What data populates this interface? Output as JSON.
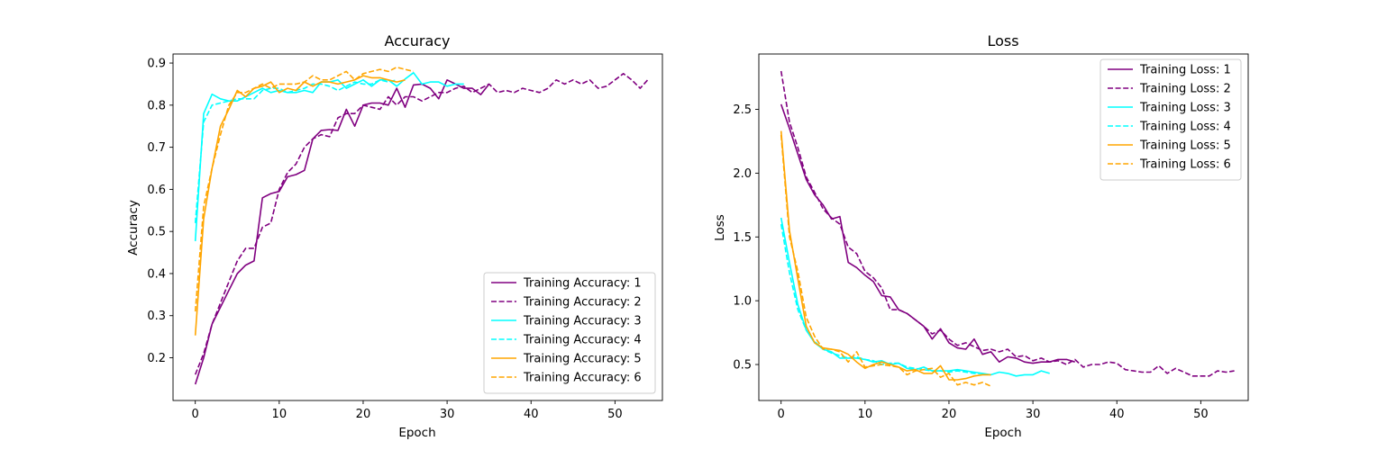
{
  "chart_data": [
    {
      "type": "line",
      "title": "Accuracy",
      "xlabel": "Epoch",
      "ylabel": "Accuracy",
      "xlim": [
        -2.65,
        55.65
      ],
      "ylim": [
        0.0985,
        0.9215
      ],
      "xticks": [
        "0",
        "10",
        "20",
        "30",
        "40",
        "50"
      ],
      "yticks": [
        "0.2",
        "0.3",
        "0.4",
        "0.5",
        "0.6",
        "0.7",
        "0.8",
        "0.9"
      ],
      "grid": false,
      "legend_position": "lower right",
      "series": [
        {
          "name": "Training Accuracy: 1",
          "color": "#800080",
          "dash": "solid",
          "values": [
            0.137,
            0.2,
            0.28,
            0.32,
            0.36,
            0.4,
            0.42,
            0.43,
            0.58,
            0.59,
            0.595,
            0.63,
            0.635,
            0.645,
            0.72,
            0.74,
            0.742,
            0.74,
            0.79,
            0.75,
            0.8,
            0.805,
            0.805,
            0.8,
            0.84,
            0.795,
            0.848,
            0.85,
            0.84,
            0.815,
            0.86,
            0.85,
            0.84,
            0.84,
            0.825,
            0.85
          ]
        },
        {
          "name": "Training Accuracy: 2",
          "color": "#800080",
          "dash": "dashed",
          "values": [
            0.16,
            0.21,
            0.28,
            0.33,
            0.38,
            0.43,
            0.46,
            0.46,
            0.51,
            0.52,
            0.6,
            0.64,
            0.66,
            0.7,
            0.72,
            0.73,
            0.725,
            0.77,
            0.78,
            0.78,
            0.8,
            0.795,
            0.79,
            0.82,
            0.8,
            0.82,
            0.82,
            0.81,
            0.82,
            0.83,
            0.83,
            0.84,
            0.845,
            0.83,
            0.84,
            0.85,
            0.83,
            0.835,
            0.83,
            0.84,
            0.835,
            0.83,
            0.84,
            0.86,
            0.85,
            0.86,
            0.85,
            0.86,
            0.84,
            0.845,
            0.86,
            0.875,
            0.86,
            0.84,
            0.862
          ]
        },
        {
          "name": "Training Accuracy: 3",
          "color": "#00FFFF",
          "dash": "solid",
          "values": [
            0.477,
            0.78,
            0.826,
            0.815,
            0.81,
            0.81,
            0.82,
            0.83,
            0.84,
            0.83,
            0.835,
            0.83,
            0.83,
            0.835,
            0.83,
            0.855,
            0.855,
            0.86,
            0.84,
            0.85,
            0.86,
            0.845,
            0.86,
            0.86,
            0.845,
            0.862,
            0.877,
            0.85,
            0.855,
            0.855,
            0.845,
            0.85,
            0.85
          ]
        },
        {
          "name": "Training Accuracy: 4",
          "color": "#00FFFF",
          "dash": "dashed",
          "values": [
            0.52,
            0.76,
            0.8,
            0.805,
            0.81,
            0.815,
            0.815,
            0.815,
            0.835,
            0.84,
            0.84,
            0.83,
            0.835,
            0.84,
            0.85,
            0.85,
            0.845,
            0.835,
            0.845,
            0.855,
            0.85,
            0.85,
            0.86,
            0.855,
            0.86
          ]
        },
        {
          "name": "Training Accuracy: 5",
          "color": "#FFA500",
          "dash": "solid",
          "values": [
            0.253,
            0.53,
            0.65,
            0.75,
            0.79,
            0.835,
            0.82,
            0.84,
            0.845,
            0.855,
            0.83,
            0.84,
            0.835,
            0.855,
            0.845,
            0.855,
            0.855,
            0.85,
            0.855,
            0.86,
            0.87,
            0.865,
            0.865,
            0.86,
            0.855,
            0.86
          ]
        },
        {
          "name": "Training Accuracy: 6",
          "color": "#FFA500",
          "dash": "dashed",
          "values": [
            0.31,
            0.56,
            0.65,
            0.73,
            0.8,
            0.83,
            0.83,
            0.84,
            0.85,
            0.84,
            0.85,
            0.85,
            0.85,
            0.855,
            0.87,
            0.86,
            0.86,
            0.87,
            0.88,
            0.86,
            0.875,
            0.88,
            0.885,
            0.88,
            0.89,
            0.885,
            0.88
          ]
        }
      ]
    },
    {
      "type": "line",
      "title": "Loss",
      "xlabel": "Epoch",
      "ylabel": "Loss",
      "xlim": [
        -2.65,
        55.65
      ],
      "ylim": [
        0.218,
        2.934
      ],
      "xticks": [
        "0",
        "10",
        "20",
        "30",
        "40",
        "50"
      ],
      "yticks": [
        "0.5",
        "1.0",
        "1.5",
        "2.0",
        "2.5"
      ],
      "grid": false,
      "legend_position": "upper right",
      "series": [
        {
          "name": "Training Loss: 1",
          "color": "#800080",
          "dash": "solid",
          "values": [
            2.54,
            2.35,
            2.15,
            1.95,
            1.83,
            1.75,
            1.64,
            1.66,
            1.3,
            1.26,
            1.2,
            1.15,
            1.04,
            1.03,
            0.93,
            0.9,
            0.85,
            0.8,
            0.7,
            0.78,
            0.67,
            0.63,
            0.62,
            0.7,
            0.58,
            0.6,
            0.52,
            0.56,
            0.55,
            0.52,
            0.51,
            0.52,
            0.52,
            0.54,
            0.54,
            0.52
          ]
        },
        {
          "name": "Training Loss: 2",
          "color": "#800080",
          "dash": "dashed",
          "values": [
            2.8,
            2.4,
            2.2,
            1.97,
            1.85,
            1.72,
            1.65,
            1.6,
            1.42,
            1.37,
            1.23,
            1.18,
            1.1,
            0.93,
            0.93,
            0.9,
            0.85,
            0.8,
            0.74,
            0.77,
            0.7,
            0.65,
            0.67,
            0.64,
            0.61,
            0.62,
            0.6,
            0.62,
            0.56,
            0.57,
            0.53,
            0.55,
            0.52,
            0.53,
            0.5,
            0.54,
            0.48,
            0.5,
            0.5,
            0.52,
            0.51,
            0.46,
            0.45,
            0.44,
            0.44,
            0.49,
            0.43,
            0.47,
            0.44,
            0.41,
            0.41,
            0.41,
            0.45,
            0.44,
            0.45
          ]
        },
        {
          "name": "Training Loss: 3",
          "color": "#00FFFF",
          "dash": "solid",
          "values": [
            1.65,
            1.3,
            0.97,
            0.77,
            0.67,
            0.62,
            0.6,
            0.55,
            0.55,
            0.55,
            0.54,
            0.52,
            0.53,
            0.5,
            0.51,
            0.47,
            0.46,
            0.48,
            0.45,
            0.45,
            0.45,
            0.46,
            0.45,
            0.44,
            0.43,
            0.42,
            0.44,
            0.43,
            0.41,
            0.42,
            0.42,
            0.45,
            0.43
          ]
        },
        {
          "name": "Training Loss: 4",
          "color": "#00FFFF",
          "dash": "dashed",
          "values": [
            1.6,
            1.22,
            0.93,
            0.77,
            0.68,
            0.62,
            0.59,
            0.57,
            0.55,
            0.56,
            0.54,
            0.53,
            0.5,
            0.51,
            0.51,
            0.48,
            0.47,
            0.46,
            0.45,
            0.45,
            0.44,
            0.45,
            0.44,
            0.43,
            0.43
          ]
        },
        {
          "name": "Training Loss: 5",
          "color": "#FFA500",
          "dash": "solid",
          "values": [
            2.33,
            1.55,
            1.17,
            0.8,
            0.67,
            0.63,
            0.62,
            0.61,
            0.58,
            0.52,
            0.47,
            0.5,
            0.52,
            0.5,
            0.48,
            0.45,
            0.46,
            0.43,
            0.43,
            0.49,
            0.38,
            0.38,
            0.39,
            0.41,
            0.42,
            0.42
          ]
        },
        {
          "name": "Training Loss: 6",
          "color": "#FFA500",
          "dash": "dashed",
          "values": [
            2.3,
            1.5,
            1.23,
            0.87,
            0.72,
            0.62,
            0.62,
            0.6,
            0.52,
            0.6,
            0.48,
            0.49,
            0.5,
            0.49,
            0.48,
            0.42,
            0.45,
            0.46,
            0.47,
            0.4,
            0.43,
            0.34,
            0.36,
            0.34,
            0.36,
            0.33
          ]
        }
      ]
    }
  ]
}
